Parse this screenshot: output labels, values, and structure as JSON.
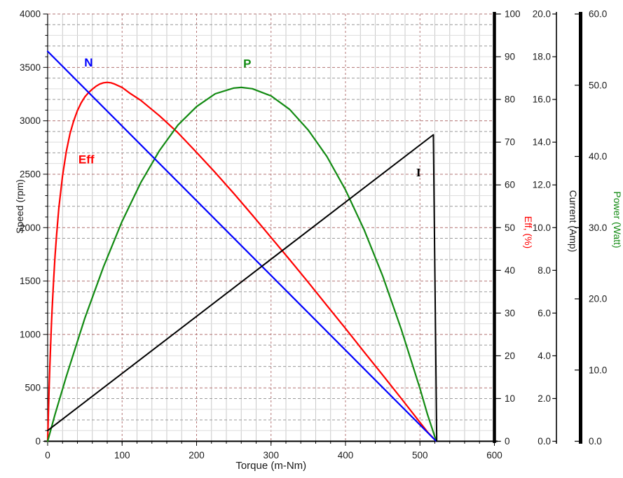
{
  "chart_data": {
    "type": "line",
    "title": "",
    "xlabel": "Torque (m-Nm)",
    "xlim": [
      0,
      600
    ],
    "x_ticks": [
      "0",
      "100",
      "200",
      "300",
      "400",
      "500",
      "600"
    ],
    "x_minor_step": 20,
    "grid": {
      "vertical_minor_step": 20,
      "vertical_major_step": 100,
      "horizontal_minor_step": 100,
      "horizontal_major_step": 500,
      "minor_color": "#c9c9c9",
      "alt_color": "#9a9a9a",
      "light_color": "#dedede",
      "major_color": "#b37474",
      "grid_on": true
    },
    "legend_position": "inline-labels",
    "axes": [
      {
        "id": "speed",
        "label": "Speed (rpm)",
        "side": "left",
        "lim": [
          0,
          4000
        ],
        "ticks": [
          "0",
          "500",
          "1000",
          "1500",
          "2000",
          "2500",
          "3000",
          "3500",
          "4000"
        ],
        "color": "#1a1a1a"
      },
      {
        "id": "eff",
        "label": "Eff, (%)",
        "side": "right",
        "lim": [
          0,
          100
        ],
        "ticks": [
          "0",
          "10",
          "20",
          "30",
          "40",
          "50",
          "60",
          "70",
          "80",
          "90",
          "100"
        ],
        "color": "#ff0000"
      },
      {
        "id": "current",
        "label": "Current (Amp)",
        "side": "right",
        "lim": [
          0,
          20
        ],
        "ticks": [
          "0.0",
          "2.0",
          "4.0",
          "6.0",
          "8.0",
          "10.0",
          "12.0",
          "14.0",
          "16.0",
          "18.0",
          "20.0"
        ],
        "color": "#1a1a1a"
      },
      {
        "id": "power",
        "label": "Power (Watt)",
        "side": "right",
        "lim": [
          0,
          60
        ],
        "ticks": [
          "0.0",
          "10.0",
          "20.0",
          "30.0",
          "40.0",
          "50.0",
          "60.0"
        ],
        "color": "#128a12"
      }
    ],
    "series": [
      {
        "name": "Eff",
        "axis": "eff",
        "color": "#ff0000",
        "width": 2.2,
        "label": {
          "text": "Eff",
          "x": 52,
          "y": 65,
          "serif": false
        },
        "points": [
          [
            0,
            0
          ],
          [
            1,
            6.7
          ],
          [
            2,
            12.5
          ],
          [
            3,
            17.9
          ],
          [
            4,
            22.7
          ],
          [
            5,
            27
          ],
          [
            6,
            31
          ],
          [
            8,
            37.7
          ],
          [
            10,
            43.5
          ],
          [
            12,
            48.4
          ],
          [
            15,
            54.5
          ],
          [
            20,
            62.2
          ],
          [
            25,
            67.8
          ],
          [
            30,
            72
          ],
          [
            35,
            75
          ],
          [
            40,
            77.4
          ],
          [
            45,
            79.2
          ],
          [
            50,
            80.6
          ],
          [
            55,
            81.6
          ],
          [
            60,
            82.4
          ],
          [
            65,
            83.1
          ],
          [
            70,
            83.6
          ],
          [
            75,
            83.9
          ],
          [
            80,
            84
          ],
          [
            85,
            83.9
          ],
          [
            90,
            83.6
          ],
          [
            100,
            82.8
          ],
          [
            110,
            81.5
          ],
          [
            125,
            79.8
          ],
          [
            150,
            76.2
          ],
          [
            175,
            72.2
          ],
          [
            200,
            67.6
          ],
          [
            225,
            62.9
          ],
          [
            250,
            58
          ],
          [
            275,
            52.9
          ],
          [
            300,
            47.7
          ],
          [
            325,
            42.5
          ],
          [
            350,
            37.2
          ],
          [
            375,
            31.8
          ],
          [
            400,
            26.4
          ],
          [
            425,
            20.9
          ],
          [
            450,
            15.5
          ],
          [
            475,
            10
          ],
          [
            500,
            4.4
          ],
          [
            510,
            2.2
          ],
          [
            522,
            0
          ]
        ]
      },
      {
        "name": "P",
        "axis": "power",
        "color": "#128a12",
        "width": 2.2,
        "label": {
          "text": "P",
          "x": 268,
          "y": 52.5,
          "serif": false
        },
        "points": [
          [
            0,
            0
          ],
          [
            10,
            3.8
          ],
          [
            25,
            9.1
          ],
          [
            50,
            17.3
          ],
          [
            75,
            24.5
          ],
          [
            100,
            30.9
          ],
          [
            125,
            36.3
          ],
          [
            150,
            40.8
          ],
          [
            175,
            44.4
          ],
          [
            200,
            47
          ],
          [
            225,
            48.8
          ],
          [
            250,
            49.6
          ],
          [
            260,
            49.7
          ],
          [
            275,
            49.5
          ],
          [
            300,
            48.5
          ],
          [
            325,
            46.6
          ],
          [
            350,
            43.7
          ],
          [
            375,
            40
          ],
          [
            400,
            35.3
          ],
          [
            425,
            29.7
          ],
          [
            450,
            23.2
          ],
          [
            475,
            15.7
          ],
          [
            500,
            7.4
          ],
          [
            510,
            3.8
          ],
          [
            522,
            0
          ]
        ]
      },
      {
        "name": "N",
        "axis": "speed",
        "color": "#0000ff",
        "width": 2.2,
        "label": {
          "text": "N",
          "x": 55,
          "y": 3510,
          "serif": false
        },
        "points": [
          [
            0,
            3650
          ],
          [
            522,
            0
          ]
        ]
      },
      {
        "name": "I",
        "axis": "current",
        "color": "#000000",
        "width": 2,
        "label": {
          "text": "I",
          "x": 498,
          "y": 12.4,
          "serif": true
        },
        "points": [
          [
            0,
            0.5
          ],
          [
            518,
            14.35
          ],
          [
            522.5,
            0
          ]
        ]
      }
    ]
  }
}
